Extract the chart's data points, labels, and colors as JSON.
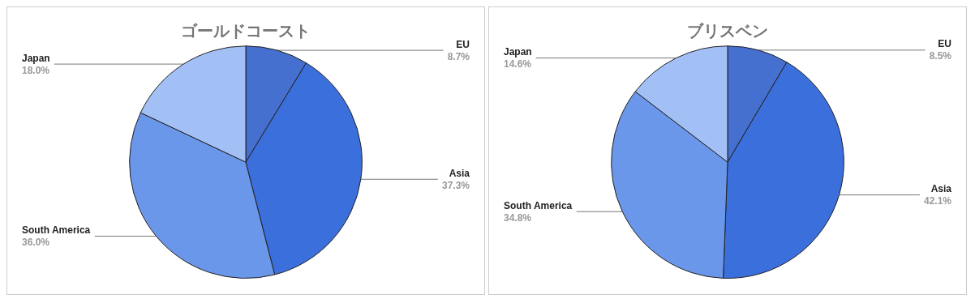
{
  "chart_data": [
    {
      "type": "pie",
      "title": "ゴールドコースト",
      "categories": [
        "EU",
        "Asia",
        "South America",
        "Japan"
      ],
      "values": [
        8.7,
        37.3,
        36.0,
        18.0
      ],
      "value_labels": [
        "8.7%",
        "37.3%",
        "36.0%",
        "18.0%"
      ],
      "colors": [
        "#4670d0",
        "#3b6fdc",
        "#6a97e9",
        "#a3c0f6"
      ],
      "legend": false
    },
    {
      "type": "pie",
      "title": "ブリスベン",
      "categories": [
        "EU",
        "Asia",
        "South America",
        "Japan"
      ],
      "values": [
        8.5,
        42.1,
        34.8,
        14.6
      ],
      "value_labels": [
        "8.5%",
        "42.1%",
        "34.8%",
        "14.6%"
      ],
      "colors": [
        "#4670d0",
        "#3b6fdc",
        "#6a97e9",
        "#a3c0f6"
      ],
      "legend": false
    }
  ]
}
